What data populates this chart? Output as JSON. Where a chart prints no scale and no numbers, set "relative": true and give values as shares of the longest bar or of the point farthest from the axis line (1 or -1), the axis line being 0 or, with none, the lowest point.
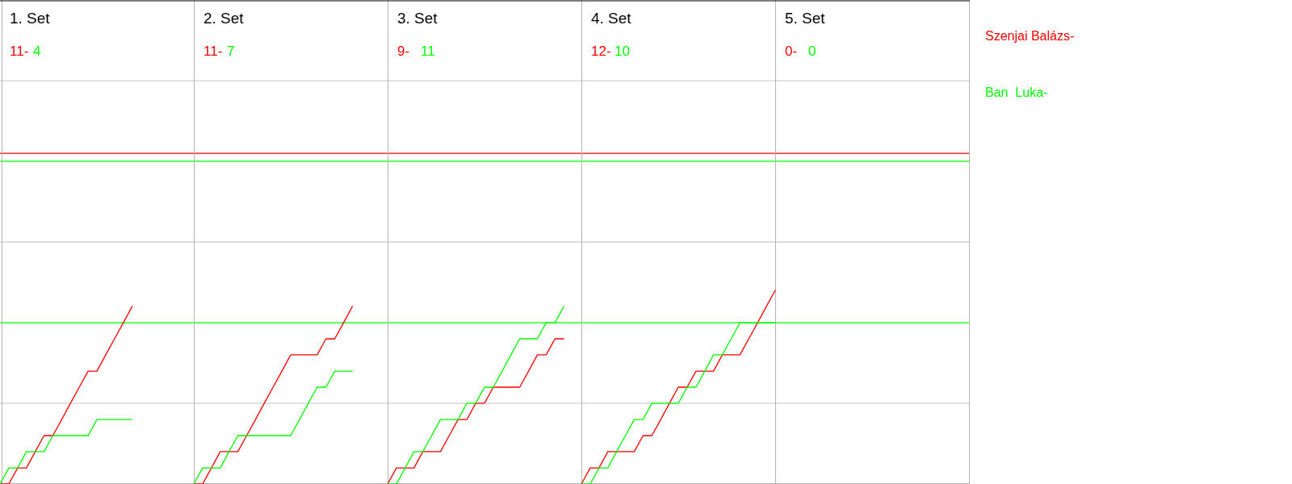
{
  "chart_data": {
    "type": "line",
    "relative": true,
    "grid": "x",
    "annotations": [
      "1. Set",
      "11-",
      "4",
      "2. Set",
      "11-",
      "7",
      "3. Set",
      "9-",
      "11",
      "4. Set",
      "12-",
      "10",
      "5. Set",
      "0-",
      "0"
    ],
    "categories": [
      null,
      null,
      null,
      null,
      null,
      null,
      null,
      null,
      null,
      null,
      null,
      null,
      null,
      null,
      null,
      null,
      null,
      null,
      null,
      null,
      null,
      null,
      null,
      null,
      null,
      null,
      null,
      null,
      null,
      null,
      null,
      null,
      null,
      null,
      null,
      null,
      null,
      null,
      null,
      null,
      null,
      null,
      null,
      null,
      null,
      null,
      null,
      null,
      null,
      null,
      null,
      null,
      null,
      null,
      null,
      null,
      null,
      null,
      null,
      null,
      null,
      null,
      null,
      null,
      null,
      null,
      null,
      null,
      null,
      null,
      null,
      null,
      null,
      null,
      null,
      null,
      null,
      null,
      null,
      null,
      null,
      null,
      null,
      null,
      null,
      null,
      null,
      null,
      null,
      null,
      null,
      null,
      null,
      null,
      null,
      null,
      null,
      null,
      null,
      null,
      null,
      null,
      null,
      null,
      null,
      null,
      null,
      null,
      null,
      null,
      null
    ],
    "series": [
      {
        "name": "Szenjai Balázs-",
        "color": "#ff0000",
        "values": [
          0,
          0,
          0.083,
          0.083,
          0.167,
          0.25,
          0.25,
          0.333,
          0.417,
          0.5,
          0.583,
          0.583,
          0.667,
          0.75,
          0.833,
          0.917,
          null,
          null,
          null,
          null,
          null,
          null,
          null,
          null,
          null,
          null,
          null,
          null,
          null,
          null,
          null,
          null,
          null,
          null,
          null,
          null,
          null,
          null,
          null,
          null,
          null,
          null,
          null,
          null,
          null,
          null,
          null,
          null,
          null,
          null,
          null,
          null,
          null,
          null,
          null,
          null,
          null,
          null,
          null,
          null,
          null,
          null,
          null,
          null,
          null,
          null,
          null,
          null,
          null,
          null,
          null,
          null,
          null,
          null,
          null,
          null,
          null,
          null,
          null,
          null,
          null,
          null,
          null,
          null,
          null,
          null,
          null,
          null,
          null,
          null,
          null,
          null,
          null,
          null,
          null,
          null,
          null,
          null,
          null,
          null,
          null,
          null,
          null,
          null,
          null,
          null,
          null,
          null,
          null,
          null,
          null
        ]
      },
      {
        "name": "Ban  Luka-",
        "color": "#00ff00",
        "values": [
          0,
          0.083,
          0.083,
          0.167,
          0.167,
          0.167,
          0.25,
          0.25,
          0.25,
          0.25,
          0.25,
          0.333,
          0.333,
          0.333,
          0.333,
          0.333,
          null,
          null,
          null,
          null,
          null,
          null,
          null,
          null,
          null,
          null,
          null,
          null,
          null,
          null,
          null,
          null,
          null,
          null,
          null,
          null,
          null,
          null,
          null,
          null,
          null,
          null,
          null,
          null,
          null,
          null,
          null,
          null,
          null,
          null,
          null,
          null,
          null,
          null,
          null,
          null,
          null,
          null,
          null,
          null,
          null,
          null,
          null,
          null,
          null,
          null,
          null,
          null,
          null,
          null,
          null,
          null,
          null,
          null,
          null,
          null,
          null,
          null,
          null,
          null,
          null,
          null,
          null,
          null,
          null,
          null,
          null,
          null,
          null,
          null,
          null,
          null,
          null,
          null,
          null,
          null,
          null,
          null,
          null,
          null,
          null,
          null,
          null,
          null,
          null,
          null,
          null,
          null,
          null,
          null,
          null
        ]
      },
      {
        "color": "#ff0000",
        "values": [
          null,
          null,
          null,
          null,
          null,
          null,
          null,
          null,
          null,
          null,
          null,
          null,
          null,
          null,
          null,
          null,
          null,
          null,
          null,
          null,
          null,
          null,
          0,
          0,
          0.083,
          0.167,
          0.167,
          0.167,
          0.25,
          0.333,
          0.417,
          0.5,
          0.583,
          0.667,
          0.667,
          0.667,
          0.667,
          0.75,
          0.75,
          0.833,
          0.917,
          null,
          null,
          null,
          null,
          null,
          null,
          null,
          null,
          null,
          null,
          null,
          null,
          null,
          null,
          null,
          null,
          null,
          null,
          null,
          null,
          null,
          null,
          null,
          null,
          null,
          null,
          null,
          null,
          null,
          null,
          null,
          null,
          null,
          null,
          null,
          null,
          null,
          null,
          null,
          null,
          null,
          null,
          null,
          null,
          null,
          null,
          null,
          null,
          null,
          null,
          null,
          null,
          null,
          null,
          null,
          null,
          null,
          null,
          null,
          null,
          null,
          null,
          null,
          null,
          null,
          null,
          null,
          null,
          null,
          null
        ]
      },
      {
        "color": "#00ff00",
        "values": [
          null,
          null,
          null,
          null,
          null,
          null,
          null,
          null,
          null,
          null,
          null,
          null,
          null,
          null,
          null,
          null,
          null,
          null,
          null,
          null,
          null,
          null,
          0,
          0.083,
          0.083,
          0.083,
          0.167,
          0.25,
          0.25,
          0.25,
          0.25,
          0.25,
          0.25,
          0.25,
          0.333,
          0.417,
          0.5,
          0.5,
          0.583,
          0.583,
          0.583,
          null,
          null,
          null,
          null,
          null,
          null,
          null,
          null,
          null,
          null,
          null,
          null,
          null,
          null,
          null,
          null,
          null,
          null,
          null,
          null,
          null,
          null,
          null,
          null,
          null,
          null,
          null,
          null,
          null,
          null,
          null,
          null,
          null,
          null,
          null,
          null,
          null,
          null,
          null,
          null,
          null,
          null,
          null,
          null,
          null,
          null,
          null,
          null,
          null,
          null,
          null,
          null,
          null,
          null,
          null,
          null,
          null,
          null,
          null,
          null,
          null,
          null,
          null,
          null,
          null,
          null,
          null,
          null,
          null,
          null
        ]
      },
      {
        "color": "#ff0000",
        "values": [
          null,
          null,
          null,
          null,
          null,
          null,
          null,
          null,
          null,
          null,
          null,
          null,
          null,
          null,
          null,
          null,
          null,
          null,
          null,
          null,
          null,
          null,
          null,
          null,
          null,
          null,
          null,
          null,
          null,
          null,
          null,
          null,
          null,
          null,
          null,
          null,
          null,
          null,
          null,
          null,
          null,
          null,
          null,
          null,
          0,
          0.083,
          0.083,
          0.083,
          0.167,
          0.167,
          0.167,
          0.25,
          0.333,
          0.333,
          0.417,
          0.417,
          0.5,
          0.5,
          0.5,
          0.5,
          0.583,
          0.667,
          0.667,
          0.75,
          0.75,
          null,
          null,
          null,
          null,
          null,
          null,
          null,
          null,
          null,
          null,
          null,
          null,
          null,
          null,
          null,
          null,
          null,
          null,
          null,
          null,
          null,
          null,
          null,
          null,
          null,
          null,
          null,
          null,
          null,
          null,
          null,
          null,
          null,
          null,
          null,
          null,
          null,
          null,
          null,
          null,
          null,
          null,
          null,
          null,
          null,
          null
        ]
      },
      {
        "color": "#00ff00",
        "values": [
          null,
          null,
          null,
          null,
          null,
          null,
          null,
          null,
          null,
          null,
          null,
          null,
          null,
          null,
          null,
          null,
          null,
          null,
          null,
          null,
          null,
          null,
          null,
          null,
          null,
          null,
          null,
          null,
          null,
          null,
          null,
          null,
          null,
          null,
          null,
          null,
          null,
          null,
          null,
          null,
          null,
          null,
          null,
          null,
          0,
          0,
          0.083,
          0.167,
          0.167,
          0.25,
          0.333,
          0.333,
          0.333,
          0.417,
          0.417,
          0.5,
          0.5,
          0.583,
          0.667,
          0.75,
          0.75,
          0.75,
          0.833,
          0.833,
          0.917,
          null,
          null,
          null,
          null,
          null,
          null,
          null,
          null,
          null,
          null,
          null,
          null,
          null,
          null,
          null,
          null,
          null,
          null,
          null,
          null,
          null,
          null,
          null,
          null,
          null,
          null,
          null,
          null,
          null,
          null,
          null,
          null,
          null,
          null,
          null,
          null,
          null,
          null,
          null,
          null,
          null,
          null,
          null,
          null,
          null,
          null
        ]
      },
      {
        "color": "#ff0000",
        "values": [
          null,
          null,
          null,
          null,
          null,
          null,
          null,
          null,
          null,
          null,
          null,
          null,
          null,
          null,
          null,
          null,
          null,
          null,
          null,
          null,
          null,
          null,
          null,
          null,
          null,
          null,
          null,
          null,
          null,
          null,
          null,
          null,
          null,
          null,
          null,
          null,
          null,
          null,
          null,
          null,
          null,
          null,
          null,
          null,
          null,
          null,
          null,
          null,
          null,
          null,
          null,
          null,
          null,
          null,
          null,
          null,
          null,
          null,
          null,
          null,
          null,
          null,
          null,
          null,
          null,
          null,
          0,
          0.083,
          0.083,
          0.167,
          0.167,
          0.167,
          0.167,
          0.25,
          0.25,
          0.333,
          0.417,
          0.5,
          0.5,
          0.583,
          0.583,
          0.583,
          0.667,
          0.667,
          0.667,
          0.75,
          0.833,
          0.917,
          1,
          null,
          null,
          null,
          null,
          null,
          null,
          null,
          null,
          null,
          null,
          null,
          null,
          null,
          null,
          null,
          null,
          null,
          null,
          null,
          null,
          null,
          null
        ]
      },
      {
        "color": "#00ff00",
        "values": [
          null,
          null,
          null,
          null,
          null,
          null,
          null,
          null,
          null,
          null,
          null,
          null,
          null,
          null,
          null,
          null,
          null,
          null,
          null,
          null,
          null,
          null,
          null,
          null,
          null,
          null,
          null,
          null,
          null,
          null,
          null,
          null,
          null,
          null,
          null,
          null,
          null,
          null,
          null,
          null,
          null,
          null,
          null,
          null,
          null,
          null,
          null,
          null,
          null,
          null,
          null,
          null,
          null,
          null,
          null,
          null,
          null,
          null,
          null,
          null,
          null,
          null,
          null,
          null,
          null,
          null,
          0,
          0,
          0.083,
          0.083,
          0.167,
          0.25,
          0.333,
          0.333,
          0.417,
          0.417,
          0.417,
          0.417,
          0.5,
          0.5,
          0.583,
          0.667,
          0.667,
          0.75,
          0.833,
          0.833,
          0.833,
          0.833,
          0.833,
          null,
          null,
          null,
          null,
          null,
          null,
          null,
          null,
          null,
          null,
          null,
          null,
          null,
          null,
          null,
          null,
          null,
          null,
          null,
          null,
          null,
          null
        ]
      }
    ],
    "ref_lines": [
      {
        "axis": "y",
        "value": 0.417,
        "color": "#d0d0d0"
      },
      {
        "axis": "y",
        "value": 1.25,
        "color": "#d0d0d0"
      },
      {
        "axis": "y",
        "value": 2.083,
        "color": "#d0d0d0"
      },
      {
        "axis": "y",
        "value": 1.708,
        "color": "#ff0000"
      },
      {
        "axis": "y",
        "value": 1.667,
        "color": "#00ff00"
      },
      {
        "axis": "y",
        "value": 0.833,
        "color": "#00ff00"
      }
    ]
  }
}
